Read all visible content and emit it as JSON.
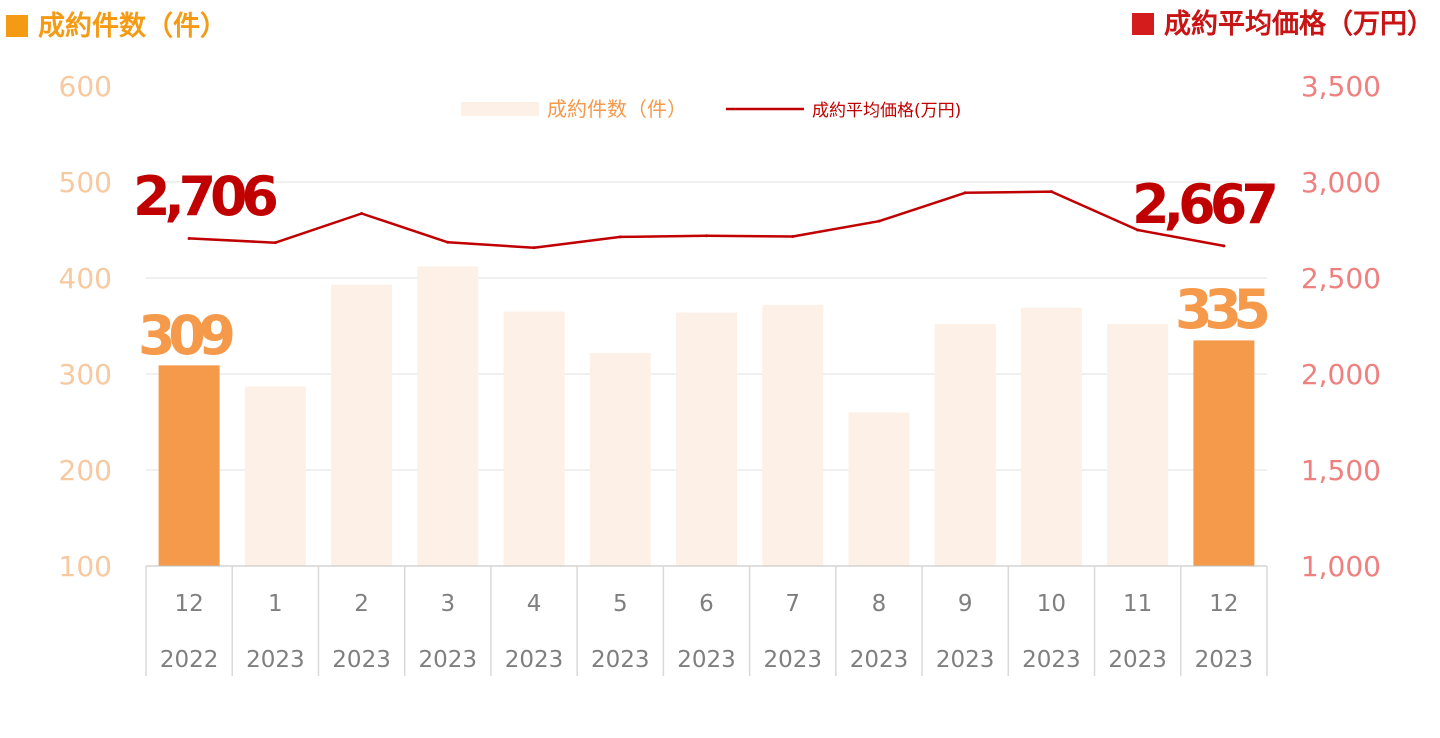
{
  "left_title": "成約件数（件）",
  "right_title": "成約平均価格（万円）",
  "colors": {
    "bar": "#fdf0e6",
    "bar_highlight": "#f5994a",
    "line": "#c00000",
    "left_axis": "#f7c9a0",
    "right_axis": "#f08080",
    "grid": "#e0e0e0",
    "category_text": "#7f7f7f",
    "left_title": "#f59a13",
    "right_title": "#c81414"
  },
  "chart_data": {
    "type": "bar",
    "categories": [
      {
        "month": "12",
        "year": "2022"
      },
      {
        "month": "1",
        "year": "2023"
      },
      {
        "month": "2",
        "year": "2023"
      },
      {
        "month": "3",
        "year": "2023"
      },
      {
        "month": "4",
        "year": "2023"
      },
      {
        "month": "5",
        "year": "2023"
      },
      {
        "month": "6",
        "year": "2023"
      },
      {
        "month": "7",
        "year": "2023"
      },
      {
        "month": "8",
        "year": "2023"
      },
      {
        "month": "9",
        "year": "2023"
      },
      {
        "month": "10",
        "year": "2023"
      },
      {
        "month": "11",
        "year": "2023"
      },
      {
        "month": "12",
        "year": "2023"
      }
    ],
    "series": [
      {
        "name": "成約件数（件）",
        "type": "bar",
        "axis": "left",
        "values": [
          309,
          287,
          393,
          412,
          365,
          322,
          364,
          372,
          260,
          352,
          369,
          352,
          335
        ],
        "highlight": [
          0,
          12
        ]
      },
      {
        "name": "成約平均価格(万円)",
        "type": "line",
        "axis": "right",
        "values": [
          2706,
          2684,
          2836,
          2686,
          2658,
          2714,
          2720,
          2716,
          2796,
          2944,
          2950,
          2750,
          2667
        ]
      }
    ],
    "left_axis": {
      "min": 100,
      "max": 600,
      "ticks": [
        "100",
        "200",
        "300",
        "400",
        "500",
        "600"
      ]
    },
    "right_axis": {
      "min": 1000,
      "max": 3500,
      "ticks": [
        "1,000",
        "1,500",
        "2,000",
        "2,500",
        "3,000",
        "3,500"
      ]
    },
    "annotations": {
      "bar_first": "309",
      "bar_last": "335",
      "line_first": "2,706",
      "line_last": "2,667"
    },
    "grid": true,
    "legend": "top-center"
  }
}
